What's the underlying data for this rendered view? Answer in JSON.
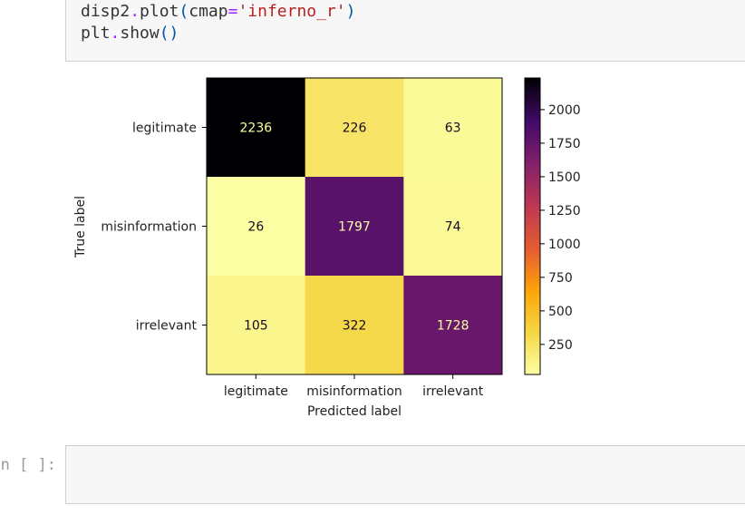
{
  "code_cell": {
    "line1": {
      "a": "disp2",
      "dot": ".",
      "b": "plot",
      "lp": "(",
      "c": "cmap",
      "eq": "=",
      "s": "'inferno_r'",
      "rp": ")"
    },
    "line2": {
      "a": "plt",
      "dot": ".",
      "b": "show",
      "p": "()"
    }
  },
  "chart_data": {
    "type": "heatmap",
    "title": "",
    "xlabel": "Predicted label",
    "ylabel": "True label",
    "x_categories": [
      "legitimate",
      "misinformation",
      "irrelevant"
    ],
    "y_categories": [
      "legitimate",
      "misinformation",
      "irrelevant"
    ],
    "values": [
      [
        2236,
        226,
        63
      ],
      [
        26,
        1797,
        74
      ],
      [
        105,
        322,
        1728
      ]
    ],
    "colormap": "inferno_r",
    "colorbar": {
      "min": 26,
      "max": 2236,
      "ticks": [
        "2000",
        "1750",
        "1500",
        "1250",
        "1000",
        "750",
        "500",
        "250"
      ],
      "tick_values": [
        2000,
        1750,
        1500,
        1250,
        1000,
        750,
        500,
        250
      ]
    },
    "grid": false
  },
  "next_cell": {
    "prompt": "In [ ]:",
    "value": ""
  }
}
